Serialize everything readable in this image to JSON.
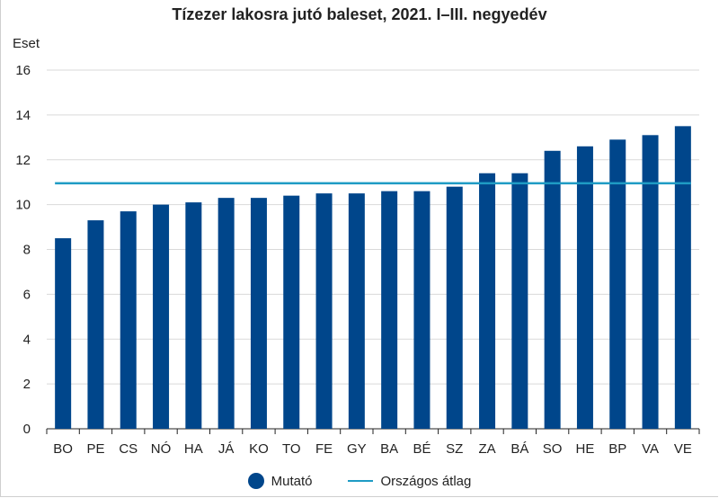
{
  "chart_data": {
    "type": "bar",
    "title": "Tízezer lakosra jutó baleset, 2021. I–III. negyedév",
    "ylabel": "Eset",
    "xlabel": "",
    "ylim": [
      0,
      16
    ],
    "yticks": [
      0,
      2,
      4,
      6,
      8,
      10,
      12,
      14,
      16
    ],
    "categories": [
      "BO",
      "PE",
      "CS",
      "NÓ",
      "HA",
      "JÁ",
      "KO",
      "TO",
      "FE",
      "GY",
      "BA",
      "BÉ",
      "SZ",
      "ZA",
      "BÁ",
      "SO",
      "HE",
      "BP",
      "VA",
      "VE"
    ],
    "series": [
      {
        "name": "Mutató",
        "values": [
          8.5,
          9.3,
          9.7,
          10.0,
          10.1,
          10.3,
          10.3,
          10.4,
          10.5,
          10.5,
          10.6,
          10.6,
          10.8,
          11.4,
          11.4,
          12.4,
          12.6,
          12.9,
          13.1,
          13.5
        ]
      }
    ],
    "reference_line": {
      "name": "Országos átlag",
      "value": 10.95
    },
    "grid": true,
    "legend_position": "bottom",
    "colors": {
      "bar": "#00468b",
      "line": "#1e9bc4",
      "grid": "#d9d9d9",
      "axis": "#222222"
    }
  }
}
